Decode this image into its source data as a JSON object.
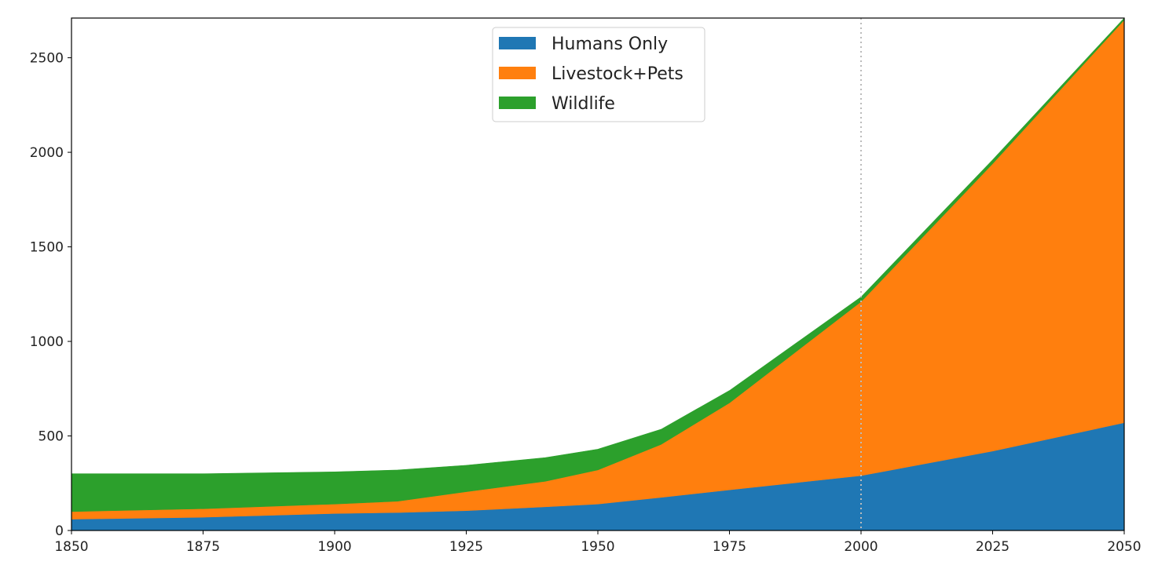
{
  "chart_data": {
    "type": "area",
    "stacked": true,
    "x": [
      1850,
      1875,
      1900,
      1912,
      1925,
      1940,
      1950,
      1962,
      1975,
      2000,
      2025,
      2050
    ],
    "series": [
      {
        "name": "Humans Only",
        "color": "#1f77b4",
        "values": [
          60,
          70,
          90,
          95,
          105,
          125,
          140,
          175,
          215,
          290,
          420,
          570
        ]
      },
      {
        "name": "Livestock+Pets",
        "color": "#ff7f0e",
        "values": [
          40,
          45,
          50,
          60,
          100,
          135,
          180,
          280,
          460,
          920,
          1520,
          2130
        ]
      },
      {
        "name": "Wildlife",
        "color": "#2ca02c",
        "values": [
          200,
          185,
          170,
          165,
          140,
          125,
          110,
          80,
          65,
          25,
          20,
          10
        ]
      }
    ],
    "xlim": [
      1850,
      2050
    ],
    "ylim": [
      0,
      2710
    ],
    "xticks": [
      "1850",
      "1875",
      "1900",
      "1925",
      "1950",
      "1975",
      "2000",
      "2025",
      "2050"
    ],
    "yticks": [
      "0",
      "500",
      "1000",
      "1500",
      "2000",
      "2500"
    ],
    "vline": {
      "x": 2000,
      "style": "dotted",
      "color": "#bbbbbb"
    },
    "legend": {
      "position": "top-center",
      "entries": [
        "Humans Only",
        "Livestock+Pets",
        "Wildlife"
      ]
    },
    "title": "",
    "xlabel": "",
    "ylabel": "",
    "grid": false
  }
}
